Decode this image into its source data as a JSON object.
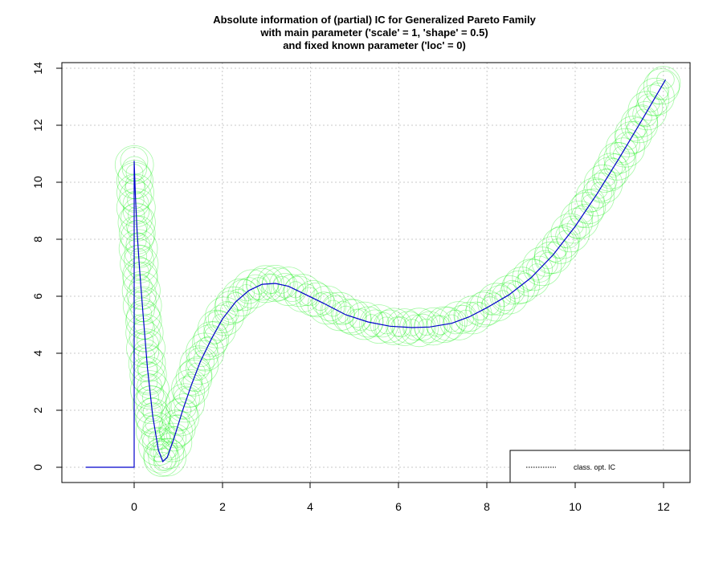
{
  "chart_data": {
    "type": "line",
    "title_lines": [
      "Absolute information of (partial) IC for Generalized Pareto Family",
      "with main parameter ('scale' =  1, 'shape' =  0.5)",
      "and fixed known parameter ('loc' =  0)"
    ],
    "xlabel": "",
    "ylabel": "",
    "xlim": [
      -1.6,
      12.6
    ],
    "ylim": [
      -0.6,
      14.1
    ],
    "x_ticks": [
      "0",
      "2",
      "4",
      "6",
      "8",
      "10",
      "12"
    ],
    "y_ticks": [
      "0",
      "2",
      "4",
      "6",
      "8",
      "10",
      "12",
      "14"
    ],
    "grid": true,
    "legend_position": "bottom-right",
    "series": [
      {
        "name": "class. opt. IC",
        "color": "#0000cc",
        "style": "solid",
        "x": [
          -1.1,
          0.0,
          0.0,
          0.03,
          0.07,
          0.12,
          0.2,
          0.3,
          0.42,
          0.55,
          0.65,
          0.75,
          0.9,
          1.1,
          1.3,
          1.5,
          1.75,
          2.0,
          2.3,
          2.6,
          2.9,
          3.2,
          3.5,
          3.9,
          4.3,
          4.8,
          5.3,
          5.8,
          6.3,
          6.7,
          7.2,
          7.6,
          8.0,
          8.5,
          9.0,
          9.5,
          10.0,
          10.5,
          11.0,
          11.5,
          12.05
        ],
        "y": [
          0.0,
          0.0,
          10.75,
          9.5,
          8.2,
          7.0,
          5.4,
          3.5,
          1.8,
          0.6,
          0.2,
          0.35,
          1.0,
          2.0,
          2.9,
          3.7,
          4.5,
          5.2,
          5.8,
          6.2,
          6.42,
          6.45,
          6.35,
          6.05,
          5.75,
          5.35,
          5.1,
          4.95,
          4.9,
          4.92,
          5.05,
          5.28,
          5.6,
          6.05,
          6.65,
          7.45,
          8.45,
          9.6,
          10.85,
          12.15,
          13.6
        ]
      }
    ],
    "markers": {
      "name": "",
      "color": "#00ee00",
      "shape": "open-circle"
    }
  }
}
